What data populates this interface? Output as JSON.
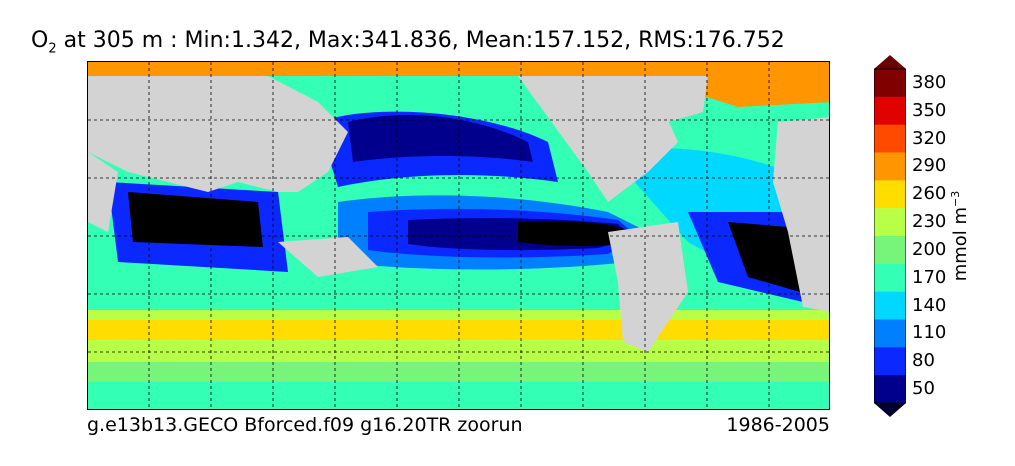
{
  "title": {
    "variable": "O",
    "subscript": "2",
    "rest": " at 305 m : Min:1.342, Max:341.836, Mean:157.152, RMS:176.752"
  },
  "footer": {
    "run_name": "g.e13b13.GECO Bforced.f09 g16.20TR zoorun",
    "period": "1986-2005"
  },
  "colorbar": {
    "label_main": "mmol m",
    "label_exp": "−3",
    "ticks": [
      "380",
      "350",
      "320",
      "290",
      "260",
      "230",
      "200",
      "170",
      "140",
      "110",
      "80",
      "50"
    ],
    "colors": [
      "#800000",
      "#e10000",
      "#ff4a00",
      "#ff9500",
      "#ffdd00",
      "#b8ff47",
      "#77f57a",
      "#33ffb5",
      "#00d8ff",
      "#0080ff",
      "#0a28ff",
      "#00008c"
    ],
    "over_color": "#6b0000",
    "under_color": "#000030"
  },
  "map": {
    "land_color": "#d3d3d3",
    "anoxic_color": "#000000",
    "grid_style": "dashed"
  }
}
